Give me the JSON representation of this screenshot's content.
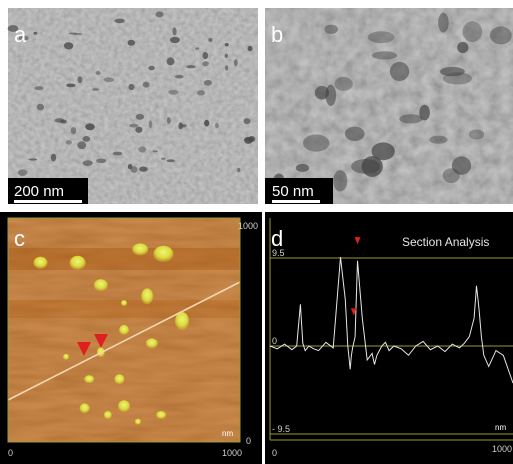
{
  "panels": {
    "a": {
      "letter": "a",
      "scalebar_label": "200 nm"
    },
    "b": {
      "letter": "b",
      "scalebar_label": "50 nm"
    },
    "c": {
      "letter": "c",
      "axis_top_right": "1000",
      "axis_bottom_left": "0",
      "axis_bottom_right": "1000",
      "axis_right_bottom": "0",
      "unit": "nm"
    },
    "d": {
      "letter": "d",
      "title": "Section Analysis",
      "y_ticks": [
        "9.5",
        "0",
        "- 9.5"
      ],
      "x_start": "0",
      "x_end": "1000",
      "unit": "nm"
    }
  },
  "colors": {
    "tem_background": "#9a9a9a",
    "afm_background": "#c06a1a",
    "afm_particle": "#d8dd3a",
    "marker_red": "#e02020",
    "profile_line": "#e8e8e8",
    "frame_olive": "#9a9a2e"
  },
  "chart_data": {
    "type": "line",
    "title": "Section Analysis",
    "xlabel": "nm",
    "ylabel": "",
    "xlim": [
      0,
      1000
    ],
    "ylim": [
      -9.5,
      9.5
    ],
    "series": [
      {
        "x": [
          0,
          30,
          60,
          90,
          110,
          125,
          135,
          145,
          160,
          180,
          200,
          230,
          260,
          290,
          310,
          320,
          330,
          335,
          340,
          350,
          360,
          380,
          400,
          420,
          430,
          440,
          450,
          460,
          475,
          490,
          510,
          540,
          570,
          600,
          630,
          660,
          690,
          720,
          750,
          780,
          800,
          820,
          840,
          850,
          860,
          870,
          880,
          900,
          930,
          960,
          1000
        ],
        "y": [
          0,
          -0.3,
          0.2,
          -0.4,
          0,
          4.5,
          0.3,
          -0.5,
          0,
          -0.3,
          -0.5,
          0.4,
          -0.2,
          9.6,
          5,
          0,
          -2.5,
          -1,
          -0.2,
          1,
          9.2,
          3,
          -1.5,
          -0.8,
          -2,
          -1,
          -0.5,
          0,
          0.4,
          -0.5,
          0,
          -0.3,
          -1,
          0,
          0.5,
          -0.4,
          0,
          -0.6,
          0.2,
          -0.2,
          0.3,
          1,
          3,
          6.5,
          4,
          1,
          -1,
          -2.2,
          -0.5,
          -1,
          -4
        ]
      }
    ]
  }
}
